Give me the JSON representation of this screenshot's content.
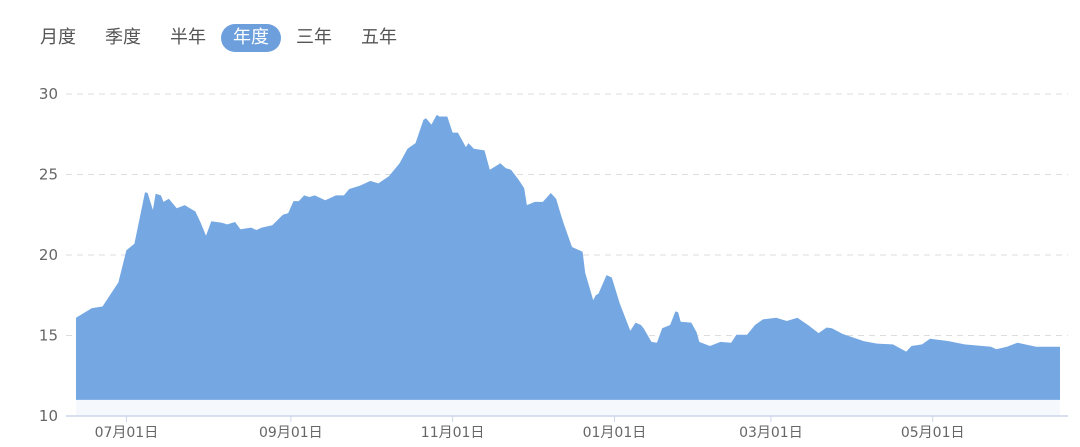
{
  "tabs": [
    {
      "label": "月度",
      "active": false
    },
    {
      "label": "季度",
      "active": false
    },
    {
      "label": "半年",
      "active": false
    },
    {
      "label": "年度",
      "active": true
    },
    {
      "label": "三年",
      "active": false
    },
    {
      "label": "五年",
      "active": false
    }
  ],
  "colors": {
    "area": "#75a8e3",
    "active_tab": "#6c9fdc",
    "grid": "#dddddd",
    "axis": "#ccd6eb"
  },
  "chart_data": {
    "type": "area",
    "title": "",
    "xlabel": "",
    "ylabel": "",
    "ylim": [
      10,
      30
    ],
    "yticks": [
      "10",
      "15",
      "20",
      "25",
      "30"
    ],
    "xticks": [
      {
        "date": "07-01",
        "label": "07月01日"
      },
      {
        "date": "09-01",
        "label": "09月01日"
      },
      {
        "date": "11-01",
        "label": "11月01日"
      },
      {
        "date": "01-01",
        "label": "01月01日"
      },
      {
        "date": "03-01",
        "label": "03月01日"
      },
      {
        "date": "05-01",
        "label": "05月01日"
      }
    ],
    "grid": "horizontal-dashed",
    "legend": "none",
    "series": [
      {
        "points": [
          [
            "06-12",
            16.1
          ],
          [
            "06-18",
            16.7
          ],
          [
            "06-22",
            16.8
          ],
          [
            "06-26",
            17.8
          ],
          [
            "06-28",
            18.3
          ],
          [
            "07-01",
            20.3
          ],
          [
            "07-04",
            20.7
          ],
          [
            "07-08",
            23.9
          ],
          [
            "07-09",
            23.85
          ],
          [
            "07-11",
            22.8
          ],
          [
            "07-12",
            23.8
          ],
          [
            "07-14",
            23.7
          ],
          [
            "07-15",
            23.3
          ],
          [
            "07-17",
            23.5
          ],
          [
            "07-20",
            22.9
          ],
          [
            "07-23",
            23.1
          ],
          [
            "07-27",
            22.7
          ],
          [
            "07-29",
            22.0
          ],
          [
            "07-31",
            21.2
          ],
          [
            "08-02",
            22.1
          ],
          [
            "08-06",
            22.0
          ],
          [
            "08-08",
            21.9
          ],
          [
            "08-11",
            22.05
          ],
          [
            "08-13",
            21.6
          ],
          [
            "08-17",
            21.7
          ],
          [
            "08-19",
            21.55
          ],
          [
            "08-21",
            21.7
          ],
          [
            "08-25",
            21.85
          ],
          [
            "08-29",
            22.5
          ],
          [
            "08-31",
            22.6
          ],
          [
            "09-02",
            23.35
          ],
          [
            "09-04",
            23.35
          ],
          [
            "09-06",
            23.7
          ],
          [
            "09-08",
            23.6
          ],
          [
            "09-10",
            23.7
          ],
          [
            "09-14",
            23.4
          ],
          [
            "09-18",
            23.7
          ],
          [
            "09-21",
            23.7
          ],
          [
            "09-23",
            24.1
          ],
          [
            "09-27",
            24.3
          ],
          [
            "10-01",
            24.6
          ],
          [
            "10-04",
            24.45
          ],
          [
            "10-08",
            24.9
          ],
          [
            "10-12",
            25.7
          ],
          [
            "10-15",
            26.6
          ],
          [
            "10-18",
            26.95
          ],
          [
            "10-21",
            28.4
          ],
          [
            "10-22",
            28.5
          ],
          [
            "10-24",
            28.1
          ],
          [
            "10-26",
            28.7
          ],
          [
            "10-27",
            28.6
          ],
          [
            "10-30",
            28.6
          ],
          [
            "11-01",
            27.6
          ],
          [
            "11-03",
            27.6
          ],
          [
            "11-06",
            26.7
          ],
          [
            "11-07",
            26.95
          ],
          [
            "11-09",
            26.6
          ],
          [
            "11-13",
            26.5
          ],
          [
            "11-15",
            25.3
          ],
          [
            "11-19",
            25.7
          ],
          [
            "11-21",
            25.4
          ],
          [
            "11-23",
            25.3
          ],
          [
            "11-26",
            24.65
          ],
          [
            "11-28",
            24.15
          ],
          [
            "11-29",
            23.1
          ],
          [
            "12-02",
            23.3
          ],
          [
            "12-05",
            23.3
          ],
          [
            "12-08",
            23.85
          ],
          [
            "12-10",
            23.5
          ],
          [
            "12-12",
            22.4
          ],
          [
            "12-13",
            21.9
          ],
          [
            "12-16",
            20.5
          ],
          [
            "12-20",
            20.2
          ],
          [
            "12-21",
            18.9
          ],
          [
            "12-24",
            17.2
          ],
          [
            "12-25",
            17.5
          ],
          [
            "12-26",
            17.6
          ],
          [
            "12-29",
            18.75
          ],
          [
            "12-31",
            18.6
          ],
          [
            "01-03",
            17.0
          ],
          [
            "01-07",
            15.3
          ],
          [
            "01-09",
            15.8
          ],
          [
            "01-11",
            15.65
          ],
          [
            "01-12",
            15.45
          ],
          [
            "01-15",
            14.6
          ],
          [
            "01-17",
            14.55
          ],
          [
            "01-19",
            15.45
          ],
          [
            "01-22",
            15.65
          ],
          [
            "01-24",
            16.5
          ],
          [
            "01-25",
            16.45
          ],
          [
            "01-26",
            15.85
          ],
          [
            "01-30",
            15.8
          ],
          [
            "02-01",
            15.2
          ],
          [
            "02-02",
            14.6
          ],
          [
            "02-06",
            14.35
          ],
          [
            "02-10",
            14.6
          ],
          [
            "02-14",
            14.55
          ],
          [
            "02-16",
            15.05
          ],
          [
            "02-20",
            15.05
          ],
          [
            "02-23",
            15.65
          ],
          [
            "02-26",
            16.0
          ],
          [
            "03-03",
            16.1
          ],
          [
            "03-07",
            15.9
          ],
          [
            "03-11",
            16.1
          ],
          [
            "03-15",
            15.65
          ],
          [
            "03-19",
            15.15
          ],
          [
            "03-22",
            15.5
          ],
          [
            "03-24",
            15.45
          ],
          [
            "03-28",
            15.1
          ],
          [
            "04-05",
            14.65
          ],
          [
            "04-10",
            14.5
          ],
          [
            "04-16",
            14.45
          ],
          [
            "04-21",
            14.0
          ],
          [
            "04-23",
            14.35
          ],
          [
            "04-27",
            14.45
          ],
          [
            "04-30",
            14.8
          ],
          [
            "05-07",
            14.65
          ],
          [
            "05-13",
            14.45
          ],
          [
            "05-23",
            14.3
          ],
          [
            "05-25",
            14.15
          ],
          [
            "05-29",
            14.3
          ],
          [
            "06-02",
            14.55
          ],
          [
            "06-09",
            14.3
          ],
          [
            "06-18",
            14.3
          ]
        ]
      }
    ]
  }
}
